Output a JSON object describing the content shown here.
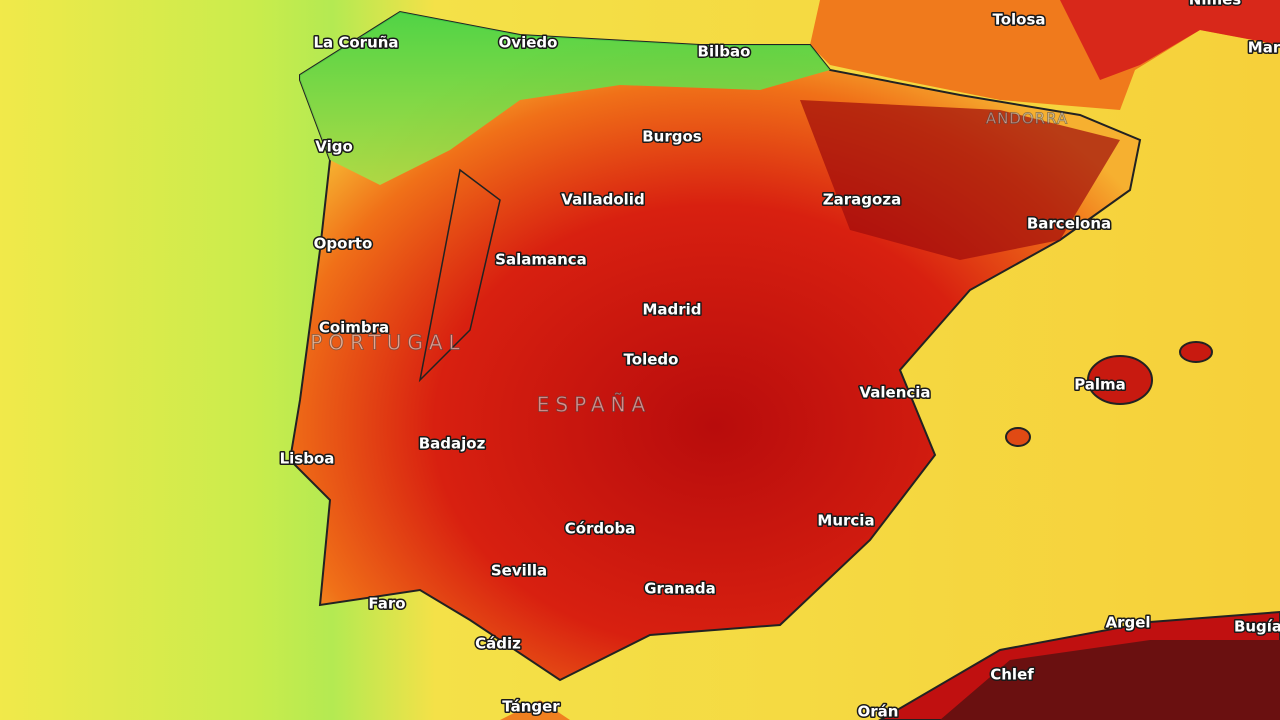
{
  "cities": [
    "La Coruña",
    "Oviedo",
    "Bilbao",
    "Tolosa",
    "Nîmes",
    "Mar",
    "Burgos",
    "Vigo",
    "Valladolid",
    "Zaragoza",
    "Barcelona",
    "Oporto",
    "Salamanca",
    "Madrid",
    "Coimbra",
    "Toledo",
    "Palma",
    "Valencia",
    "Badajoz",
    "Lisboa",
    "Murcia",
    "Córdoba",
    "Sevilla",
    "Granada",
    "Faro",
    "Argel",
    "Bugía",
    "Cádiz",
    "Chlef",
    "Tánger",
    "Orán"
  ],
  "countries": [
    "PORTUGAL",
    "ESPAÑA",
    "ANDORRA"
  ]
}
